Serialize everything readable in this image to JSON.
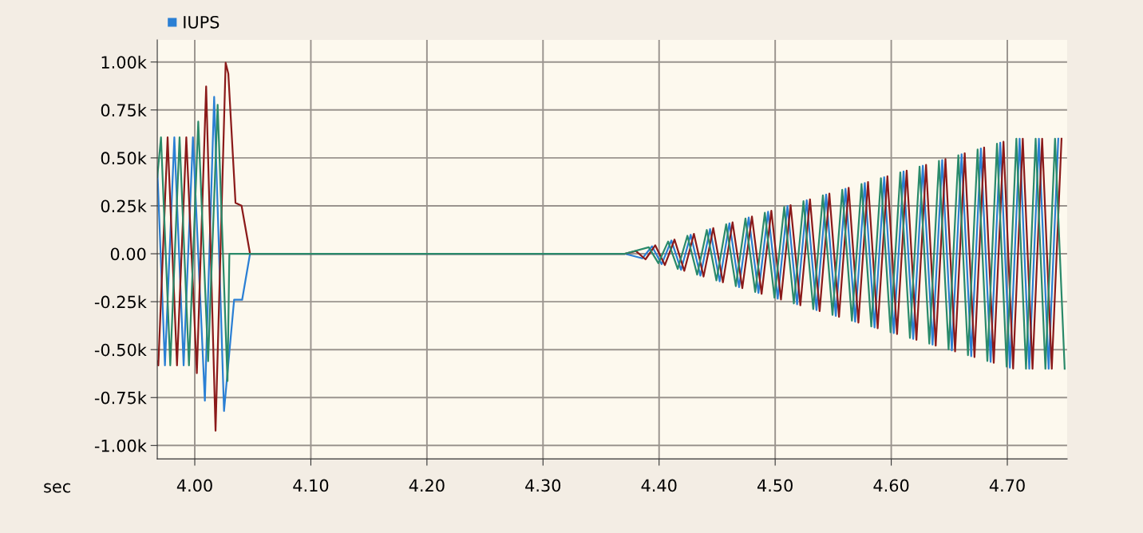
{
  "chart_data": {
    "type": "line",
    "xlabel": "sec",
    "legend": "top left",
    "grid": true,
    "marker": "none",
    "line_style": "solid",
    "xlim": [
      3.9677,
      4.7515
    ],
    "xticks": [
      {
        "value": 4.0,
        "label": "4.00"
      },
      {
        "value": 4.1,
        "label": "4.10"
      },
      {
        "value": 4.2,
        "label": "4.20"
      },
      {
        "value": 4.3,
        "label": "4.30"
      },
      {
        "value": 4.4,
        "label": "4.40"
      },
      {
        "value": 4.5,
        "label": "4.50"
      },
      {
        "value": 4.6,
        "label": "4.60"
      },
      {
        "value": 4.7,
        "label": "4.70"
      }
    ],
    "ylim": [
      -1070,
      1115
    ],
    "yticks": [
      {
        "value": -1000,
        "label": "-1.00k"
      },
      {
        "value": -750,
        "label": "-0.75k"
      },
      {
        "value": -500,
        "label": "-0.50k"
      },
      {
        "value": -250,
        "label": "-0.25k"
      },
      {
        "value": 0,
        "label": "0.00"
      },
      {
        "value": 250,
        "label": "0.25k"
      },
      {
        "value": 500,
        "label": "0.50k"
      },
      {
        "value": 750,
        "label": "0.75k"
      },
      {
        "value": 1000,
        "label": "1.00k"
      }
    ],
    "series": [
      {
        "name": "IUPS",
        "color": "#2a7fd4",
        "x": [
          3.9677,
          3.9743,
          3.9824,
          3.9904,
          3.9984,
          4.0087,
          4.0167,
          4.0252,
          4.0339,
          4.0408,
          4.0476,
          4.3705,
          4.3856,
          4.3939,
          4.4022,
          4.4106,
          4.4189,
          4.4272,
          4.4356,
          4.4439,
          4.4522,
          4.4606,
          4.4689,
          4.4772,
          4.4856,
          4.4939,
          4.5022,
          4.5106,
          4.5189,
          4.5272,
          4.5356,
          4.5439,
          4.5522,
          4.5606,
          4.5689,
          4.5772,
          4.5856,
          4.5939,
          4.6022,
          4.6106,
          4.6189,
          4.6272,
          4.6356,
          4.6439,
          4.6522,
          4.6606,
          4.6689,
          4.6772,
          4.6856,
          4.6939,
          4.7022,
          4.7106,
          4.7189,
          4.7272,
          4.7356,
          4.7439
        ],
        "values": [
          450,
          -582,
          607,
          -582,
          607,
          -766,
          818,
          -820,
          -240,
          -240,
          0,
          0,
          -24,
          39,
          -54,
          69,
          -84,
          99,
          -114,
          129,
          -144,
          159,
          -174,
          189,
          -204,
          219,
          -234,
          249,
          -264,
          279,
          -294,
          309,
          -324,
          339,
          -354,
          369,
          -384,
          399,
          -414,
          429,
          -444,
          459,
          -474,
          489,
          -504,
          519,
          -534,
          549,
          -564,
          579,
          -594,
          600,
          -600,
          600,
          -600,
          600
        ]
      },
      {
        "color": "#8b1a1a",
        "x": [
          3.9677,
          3.9686,
          3.9766,
          3.9847,
          3.9927,
          4.0018,
          4.0098,
          4.0179,
          4.0266,
          4.0289,
          4.0351,
          4.0403,
          4.0476,
          4.3705,
          4.38,
          4.3883,
          4.3967,
          4.405,
          4.4133,
          4.4217,
          4.43,
          4.4383,
          4.4467,
          4.455,
          4.4633,
          4.4717,
          4.48,
          4.4883,
          4.4967,
          4.505,
          4.5133,
          4.5217,
          4.53,
          4.5383,
          4.5467,
          4.555,
          4.5633,
          4.5717,
          4.58,
          4.5883,
          4.5967,
          4.605,
          4.6133,
          4.6217,
          4.63,
          4.6383,
          4.6467,
          4.655,
          4.6633,
          4.6717,
          4.68,
          4.6883,
          4.6967,
          4.705,
          4.7133,
          4.7217,
          4.73,
          4.7383,
          4.7467
        ],
        "values": [
          -560,
          -582,
          607,
          -582,
          607,
          -623,
          873,
          -923,
          996,
          940,
          265,
          251,
          0,
          0,
          14,
          -29,
          44,
          -59,
          74,
          -89,
          104,
          -119,
          134,
          -149,
          164,
          -179,
          194,
          -209,
          224,
          -239,
          254,
          -269,
          284,
          -299,
          314,
          -329,
          344,
          -359,
          374,
          -389,
          404,
          -419,
          434,
          -449,
          464,
          -479,
          494,
          -509,
          524,
          -539,
          554,
          -569,
          584,
          -599,
          600,
          -600,
          600,
          -600,
          600
        ]
      },
      {
        "color": "#2a8a6a",
        "x": [
          3.9677,
          3.9709,
          3.9789,
          3.9869,
          3.995,
          4.003,
          4.0115,
          4.0197,
          4.0282,
          4.0298,
          4.3705,
          4.3911,
          4.3994,
          4.4078,
          4.4161,
          4.4244,
          4.4328,
          4.4411,
          4.4494,
          4.4578,
          4.4661,
          4.4744,
          4.4828,
          4.4911,
          4.4994,
          4.5078,
          4.5161,
          4.5244,
          4.5328,
          4.5411,
          4.5494,
          4.5578,
          4.5661,
          4.5744,
          4.5828,
          4.5911,
          4.5994,
          4.6078,
          4.6161,
          4.6244,
          4.6328,
          4.6411,
          4.6494,
          4.6578,
          4.6661,
          4.6744,
          4.6828,
          4.6911,
          4.6994,
          4.7078,
          4.7161,
          4.7244,
          4.7328,
          4.7411,
          4.7494
        ],
        "values": [
          400,
          607,
          -582,
          607,
          -582,
          689,
          -560,
          777,
          -664,
          0,
          0,
          34,
          -49,
          64,
          -79,
          94,
          -109,
          124,
          -139,
          154,
          -169,
          184,
          -199,
          214,
          -229,
          244,
          -259,
          274,
          -289,
          304,
          -319,
          334,
          -349,
          364,
          -379,
          394,
          -409,
          424,
          -439,
          454,
          -469,
          484,
          -499,
          514,
          -529,
          544,
          -559,
          574,
          -589,
          600,
          -600,
          600,
          -600,
          600,
          -600
        ]
      }
    ]
  }
}
